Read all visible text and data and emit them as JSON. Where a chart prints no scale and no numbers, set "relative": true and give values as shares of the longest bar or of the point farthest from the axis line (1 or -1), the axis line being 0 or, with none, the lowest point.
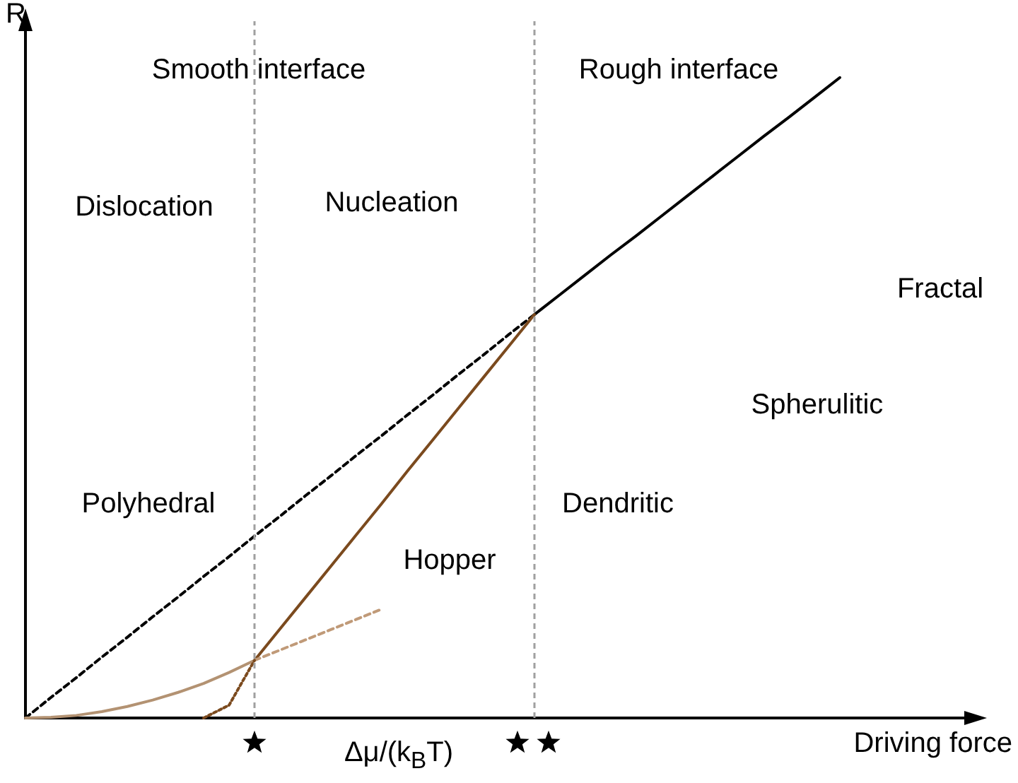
{
  "chart_data": {
    "type": "line",
    "relative": true,
    "xlabel": "Driving force",
    "ylabel": "R",
    "grid": false,
    "marker": "none",
    "categories": [
      null,
      null,
      null,
      null,
      null,
      null,
      null,
      null,
      null,
      null,
      null,
      null,
      null,
      null,
      null,
      null,
      null,
      null,
      null,
      null,
      null,
      null,
      null,
      null,
      null,
      null,
      null,
      null,
      null,
      null,
      null,
      null,
      null,
      null,
      null,
      null,
      null,
      null
    ],
    "series": [
      {
        "color": "#000000",
        "line_style": "solid",
        "values": [
          null,
          null,
          null,
          null,
          null,
          null,
          null,
          null,
          null,
          null,
          null,
          null,
          null,
          null,
          null,
          null,
          null,
          null,
          null,
          null,
          0.63,
          0.661,
          0.692,
          0.723,
          0.753,
          0.784,
          0.815,
          0.846,
          0.877,
          0.908,
          0.938,
          0.969,
          1.0,
          null,
          null,
          null,
          null,
          null
        ]
      },
      {
        "color": "#000000",
        "line_style": "dashed",
        "values": [
          0,
          0.032,
          0.063,
          0.095,
          0.126,
          0.158,
          0.189,
          0.221,
          0.252,
          0.284,
          0.315,
          0.347,
          0.378,
          0.41,
          0.441,
          0.473,
          0.504,
          0.536,
          0.567,
          0.599,
          0.63,
          null,
          null,
          null,
          null,
          null,
          null,
          null,
          null,
          null,
          null,
          null,
          null,
          null,
          null,
          null,
          null,
          null
        ]
      },
      {
        "color": "#7b4a1e",
        "line_style": "solid",
        "values": [
          null,
          null,
          null,
          null,
          null,
          null,
          null,
          null,
          null,
          0.09,
          0.139,
          0.188,
          0.237,
          0.286,
          0.335,
          0.385,
          0.434,
          0.483,
          0.532,
          0.581,
          0.63,
          null,
          null,
          null,
          null,
          null,
          null,
          null,
          null,
          null,
          null,
          null,
          null,
          null,
          null,
          null,
          null,
          null
        ]
      },
      {
        "color": "#b39272",
        "line_style": "solid",
        "values": [
          0,
          0.001,
          0.004,
          0.01,
          0.018,
          0.028,
          0.04,
          0.054,
          0.071,
          0.09,
          null,
          null,
          null,
          null,
          null,
          null,
          null,
          null,
          null,
          null,
          null,
          null,
          null,
          null,
          null,
          null,
          null,
          null,
          null,
          null,
          null,
          null,
          null,
          null,
          null,
          null,
          null,
          null
        ]
      },
      {
        "color": "#c09a78",
        "line_style": "dashed",
        "values": [
          null,
          null,
          null,
          null,
          null,
          null,
          null,
          null,
          null,
          0.09,
          0.106,
          0.122,
          0.138,
          0.154,
          0.17,
          null,
          null,
          null,
          null,
          null,
          null,
          null,
          null,
          null,
          null,
          null,
          null,
          null,
          null,
          null,
          null,
          null,
          null,
          null,
          null,
          null,
          null,
          null
        ]
      },
      {
        "color": "#7b4a1e",
        "line_style": "dotted",
        "values": [
          null,
          null,
          null,
          null,
          null,
          null,
          null,
          0,
          0.02,
          0.09,
          null,
          null,
          null,
          null,
          null,
          null,
          null,
          null,
          null,
          null,
          null,
          null,
          null,
          null,
          null,
          null,
          null,
          null,
          null,
          null,
          null,
          null,
          null,
          null,
          null,
          null,
          null,
          null
        ]
      }
    ],
    "annotations": [
      "Smooth interface",
      "Rough interface",
      "Dislocation",
      "Nucleation",
      "Polyhedral",
      "Hopper",
      "Dendritic",
      "Spherulitic",
      "Fractal",
      "Δμ/(k$_{B}$T)"
    ]
  }
}
